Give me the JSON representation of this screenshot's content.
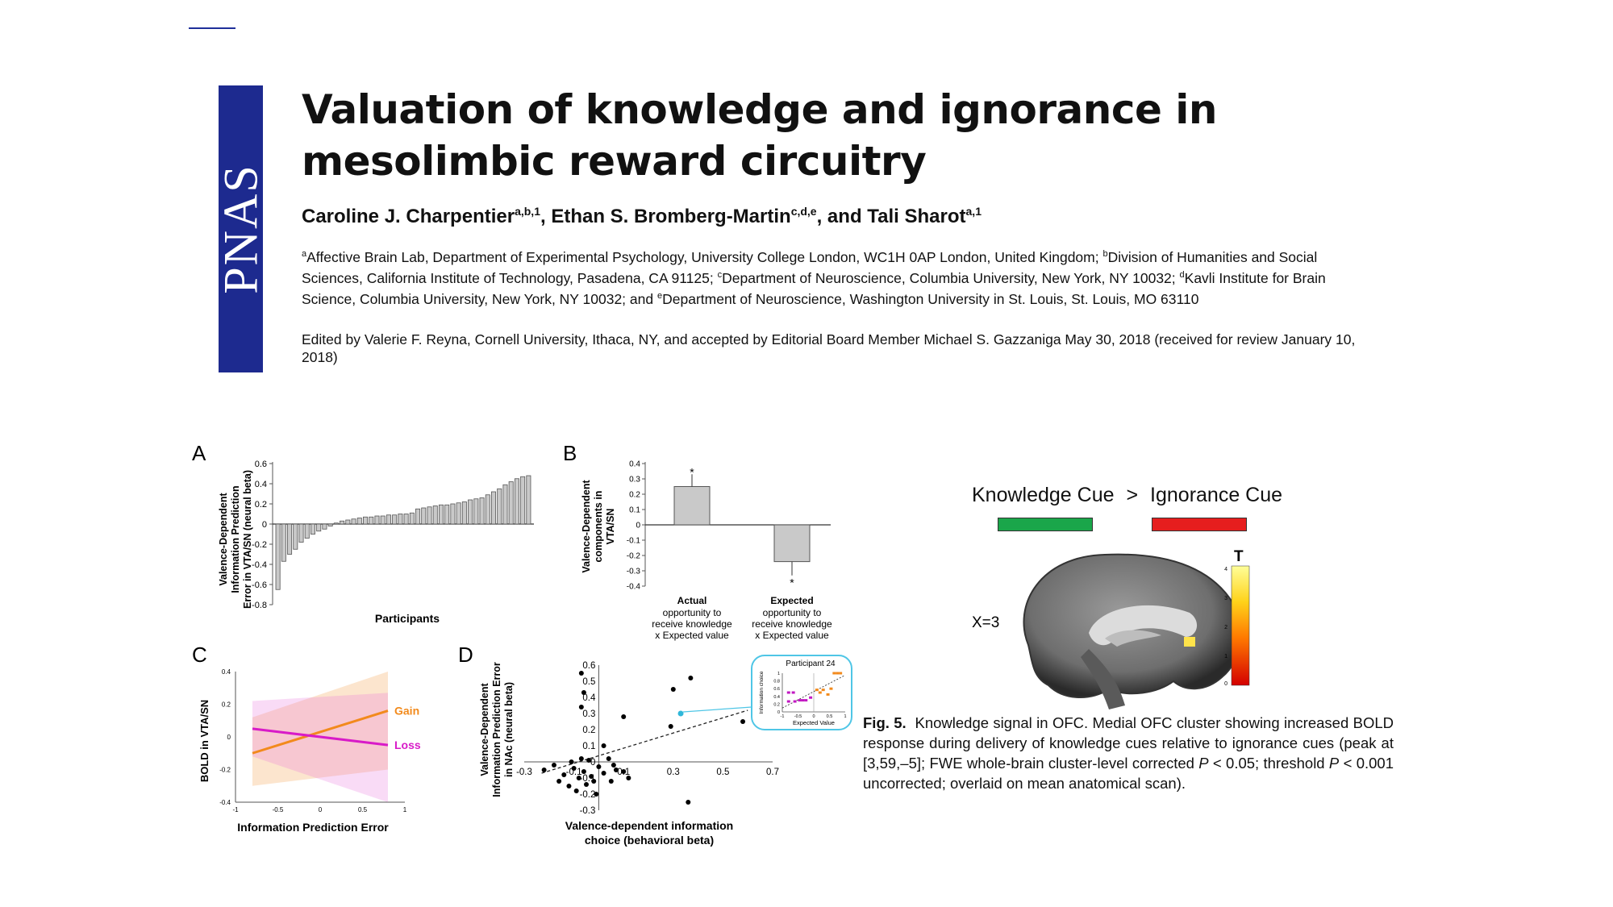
{
  "header": {
    "journal_logo": "PNAS",
    "title": "Valuation of knowledge and ignorance in mesolimbic reward circuitry",
    "authors": [
      {
        "name": "Caroline J. Charpentier",
        "sup": "a,b,1"
      },
      {
        "name": "Ethan S. Bromberg-Martin",
        "sup": "c,d,e"
      },
      {
        "name": "Tali Sharot",
        "sup": "a,1"
      }
    ],
    "author_sep_1": ", ",
    "author_sep_2": ", and ",
    "affiliations": [
      {
        "sup": "a",
        "text": "Affective Brain Lab, Department of Experimental Psychology, University College London, WC1H 0AP London, United Kingdom; "
      },
      {
        "sup": "b",
        "text": "Division of Humanities and Social Sciences, California Institute of Technology, Pasadena, CA 91125; "
      },
      {
        "sup": "c",
        "text": "Department of Neuroscience, Columbia University, New York, NY 10032; "
      },
      {
        "sup": "d",
        "text": "Kavli Institute for Brain Science, Columbia University, New York, NY 10032; and "
      },
      {
        "sup": "e",
        "text": "Department of Neuroscience, Washington University in St. Louis, St. Louis, MO 63110"
      }
    ],
    "edited_by": "Edited by Valerie F. Reyna, Cornell University, Ithaca, NY, and accepted by Editorial Board Member Michael S. Gazzaniga May 30, 2018 (received for review January 10, 2018)"
  },
  "figure": {
    "panel_a_label": "A",
    "panel_b_label": "B",
    "panel_c_label": "C",
    "panel_d_label": "D",
    "cue_left": "Knowledge Cue",
    "cue_op": ">",
    "cue_right": "Ignorance Cue",
    "cue_left_color": "#1aa64a",
    "cue_right_color": "#e61e1e",
    "slice_label": "X=3",
    "colorbar_title": "T",
    "colorbar_ticks": [
      "4",
      "3",
      "2",
      "1",
      "0"
    ],
    "caption_label": "Fig. 5.",
    "caption_parts": [
      {
        "text": "Knowledge signal in OFC. Medial OFC cluster showing increased BOLD response during delivery of knowledge cues relative to ignorance cues (peak at [3,59,–5]; FWE whole-brain cluster-level corrected "
      },
      {
        "text": "P",
        "italic": true
      },
      {
        "text": " < 0.05; threshold "
      },
      {
        "text": "P",
        "italic": true
      },
      {
        "text": " < 0.001 uncorrected; overlaid on mean anatomical scan)."
      }
    ]
  },
  "chart_data": [
    {
      "panel": "A",
      "type": "bar",
      "xlabel": "Participants",
      "ylabel": [
        "Valence-Dependent",
        "Information Prediction",
        "Error in VTA/SN (neural beta)"
      ],
      "ylim": [
        -0.8,
        0.6
      ],
      "yticks": [
        "0.6",
        "0.4",
        "0.2",
        "0",
        "-0.2",
        "-0.4",
        "-0.6",
        "-0.8"
      ],
      "values": [
        -0.65,
        -0.37,
        -0.3,
        -0.25,
        -0.18,
        -0.14,
        -0.1,
        -0.07,
        -0.05,
        -0.02,
        0.01,
        0.03,
        0.04,
        0.05,
        0.06,
        0.07,
        0.07,
        0.08,
        0.08,
        0.09,
        0.09,
        0.1,
        0.1,
        0.11,
        0.15,
        0.16,
        0.17,
        0.18,
        0.19,
        0.19,
        0.2,
        0.21,
        0.22,
        0.24,
        0.25,
        0.26,
        0.29,
        0.32,
        0.35,
        0.39,
        0.42,
        0.45,
        0.47,
        0.48
      ]
    },
    {
      "panel": "B",
      "type": "bar",
      "ylabel": [
        "Valence-Dependent",
        "components in",
        "VTA/SN"
      ],
      "ylim": [
        -0.4,
        0.4
      ],
      "yticks": [
        "0.4",
        "0.3",
        "0.2",
        "0.1",
        "0",
        "-0.1",
        "-0.2",
        "-0.3",
        "-0.4"
      ],
      "categories": [
        [
          "Actual",
          "opportunity to",
          "receive knowledge",
          "x Expected value"
        ],
        [
          "Expected",
          "opportunity to",
          "receive knowledge",
          "x Expected value"
        ]
      ],
      "values": [
        0.25,
        -0.24
      ],
      "errors": [
        0.08,
        0.09
      ],
      "annotations": [
        "*",
        "*"
      ]
    },
    {
      "panel": "C",
      "type": "line",
      "xlabel": "Information Prediction Error",
      "ylabel": "BOLD in VTA/SN",
      "xlim": [
        -1,
        1
      ],
      "ylim": [
        -0.4,
        0.4
      ],
      "xticks": [
        "-1",
        "-0.5",
        "0",
        "0.5",
        "1"
      ],
      "yticks": [
        "0.4",
        "0.2",
        "0",
        "-0.2",
        "-0.4"
      ],
      "series": [
        {
          "name": "Gain",
          "color": "#f28a1c",
          "x": [
            -0.8,
            0.8
          ],
          "y": [
            -0.1,
            0.16
          ],
          "band_lower": [
            -0.3,
            -0.2
          ],
          "band_upper": [
            0.12,
            0.4
          ]
        },
        {
          "name": "Loss",
          "color": "#d81bc8",
          "x": [
            -0.8,
            0.8
          ],
          "y": [
            0.05,
            -0.05
          ],
          "band_lower": [
            -0.12,
            -0.4
          ],
          "band_upper": [
            0.22,
            0.27
          ]
        }
      ]
    },
    {
      "panel": "D",
      "type": "scatter",
      "xlabel": [
        "Valence-dependent information",
        "choice (behavioral beta)"
      ],
      "ylabel": [
        "Valence-Dependent",
        "Information Prediction Error",
        "in NAc (neural beta)"
      ],
      "xlim": [
        -0.3,
        0.7
      ],
      "ylim": [
        -0.3,
        0.6
      ],
      "xticks": [
        "-0.3",
        "-0.1",
        "0.1",
        "0.3",
        "0.5",
        "0.7"
      ],
      "yticks": [
        "0.6",
        "0.5",
        "0.4",
        "0.3",
        "0.2",
        "0.1",
        "0",
        "-0.1",
        "-0.2",
        "-0.3"
      ],
      "points": [
        [
          -0.22,
          -0.05
        ],
        [
          -0.18,
          -0.02
        ],
        [
          -0.16,
          -0.12
        ],
        [
          -0.14,
          -0.08
        ],
        [
          -0.12,
          -0.15
        ],
        [
          -0.11,
          0.0
        ],
        [
          -0.1,
          -0.04
        ],
        [
          -0.09,
          -0.18
        ],
        [
          -0.08,
          -0.1
        ],
        [
          -0.07,
          0.02
        ],
        [
          -0.06,
          -0.06
        ],
        [
          -0.05,
          -0.14
        ],
        [
          -0.04,
          0.01
        ],
        [
          -0.03,
          -0.09
        ],
        [
          -0.02,
          -0.12
        ],
        [
          -0.01,
          -0.2
        ],
        [
          0.0,
          -0.03
        ],
        [
          0.02,
          -0.07
        ],
        [
          0.04,
          0.02
        ],
        [
          0.05,
          -0.12
        ],
        [
          0.06,
          -0.02
        ],
        [
          0.07,
          -0.05
        ],
        [
          0.1,
          -0.06
        ],
        [
          0.12,
          -0.1
        ],
        [
          0.02,
          0.1
        ],
        [
          -0.07,
          0.34
        ],
        [
          -0.06,
          0.43
        ],
        [
          -0.07,
          0.55
        ],
        [
          0.1,
          0.28
        ],
        [
          0.29,
          0.22
        ],
        [
          0.3,
          0.45
        ],
        [
          0.37,
          0.52
        ],
        [
          0.36,
          -0.25
        ],
        [
          0.58,
          0.25
        ]
      ],
      "highlight_point": [
        0.33,
        0.3
      ],
      "fit_line": [
        [
          -0.23,
          -0.07
        ],
        [
          0.6,
          0.32
        ]
      ]
    },
    {
      "panel": "D-inset",
      "type": "scatter",
      "title": "Participant 24",
      "xlabel": "Expected Value",
      "ylabel": "Information choice",
      "xlim": [
        -1,
        1
      ],
      "ylim": [
        0,
        1
      ],
      "xticks": [
        "-1",
        "-0.5",
        "0",
        "0.5",
        "1"
      ],
      "yticks": [
        "1",
        "0.8",
        "0.6",
        "0.4",
        "0.2",
        "0"
      ],
      "series": [
        {
          "name": "",
          "color": "#c218c2",
          "points": [
            [
              -0.8,
              0.5
            ],
            [
              -0.65,
              0.5
            ],
            [
              -0.8,
              0.27
            ],
            [
              -0.6,
              0.27
            ],
            [
              -0.45,
              0.3
            ],
            [
              -0.35,
              0.3
            ],
            [
              -0.25,
              0.3
            ],
            [
              -0.1,
              0.37
            ]
          ]
        },
        {
          "name": "",
          "color": "#f28a1c",
          "points": [
            [
              0.1,
              0.57
            ],
            [
              0.2,
              0.5
            ],
            [
              0.3,
              0.57
            ],
            [
              0.45,
              0.45
            ],
            [
              0.55,
              0.6
            ],
            [
              0.65,
              1.0
            ],
            [
              0.75,
              1.0
            ],
            [
              0.85,
              1.0
            ]
          ]
        }
      ],
      "fit_line": [
        [
          -1,
          0.1
        ],
        [
          1,
          0.95
        ]
      ]
    }
  ]
}
